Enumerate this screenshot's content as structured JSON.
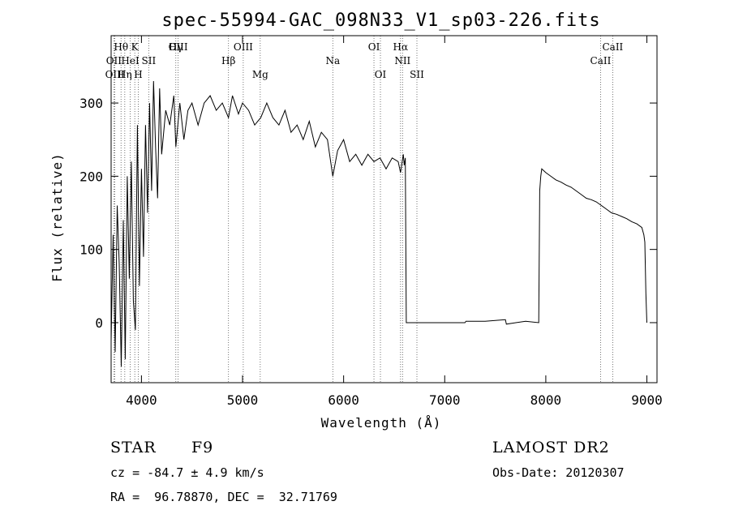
{
  "chart_data": {
    "type": "line",
    "title": "spec-55994-GAC_098N33_V1_sp03-226.fits",
    "xlabel": "Wavelength (Å)",
    "ylabel": "Flux (relative)",
    "xlim": [
      3700,
      9100
    ],
    "ylim": [
      -82,
      392
    ],
    "x_ticks": [
      4000,
      5000,
      6000,
      7000,
      8000,
      9000
    ],
    "y_ticks": [
      0,
      100,
      200,
      300
    ],
    "grid": false,
    "series": [
      {
        "x": [
          3700,
          3720,
          3740,
          3760,
          3780,
          3800,
          3820,
          3840,
          3860,
          3880,
          3900,
          3920,
          3940,
          3960,
          3980,
          4000,
          4020,
          4040,
          4060,
          4080,
          4100,
          4120,
          4140,
          4160,
          4180,
          4200,
          4240,
          4280,
          4320,
          4340,
          4380,
          4420,
          4460,
          4500,
          4560,
          4620,
          4680,
          4740,
          4800,
          4861,
          4900,
          4960,
          5000,
          5060,
          5120,
          5180,
          5240,
          5300,
          5360,
          5420,
          5480,
          5540,
          5600,
          5660,
          5720,
          5780,
          5840,
          5893,
          5940,
          6000,
          6060,
          6120,
          6180,
          6240,
          6300,
          6360,
          6420,
          6480,
          6540,
          6563,
          6590,
          6600,
          6610,
          6620,
          6800,
          7000,
          7200,
          7210,
          7400,
          7600,
          7610,
          7800,
          7930,
          7940,
          7950,
          7960,
          8000,
          8050,
          8100,
          8150,
          8200,
          8250,
          8300,
          8350,
          8400,
          8450,
          8500,
          8550,
          8600,
          8650,
          8700,
          8750,
          8800,
          8850,
          8900,
          8950,
          8970,
          8980,
          8990,
          9000
        ],
        "y": [
          -25,
          120,
          -40,
          160,
          80,
          -60,
          140,
          -50,
          200,
          60,
          220,
          30,
          -10,
          270,
          50,
          210,
          90,
          270,
          150,
          300,
          180,
          330,
          240,
          170,
          320,
          230,
          290,
          270,
          310,
          240,
          300,
          250,
          290,
          300,
          270,
          300,
          310,
          290,
          300,
          280,
          310,
          285,
          300,
          290,
          270,
          280,
          300,
          280,
          270,
          290,
          260,
          270,
          250,
          275,
          240,
          260,
          250,
          200,
          235,
          250,
          220,
          230,
          215,
          230,
          220,
          225,
          210,
          225,
          220,
          205,
          230,
          215,
          225,
          0,
          0,
          0,
          0,
          2,
          2,
          4,
          -2,
          2,
          0,
          180,
          200,
          210,
          205,
          200,
          195,
          192,
          188,
          185,
          180,
          175,
          170,
          168,
          165,
          160,
          155,
          150,
          148,
          145,
          142,
          138,
          135,
          130,
          120,
          110,
          40,
          0
        ]
      }
    ],
    "line_annotations": [
      {
        "label": "Hθ",
        "x": 3798
      },
      {
        "label": "OII",
        "x": 3727
      },
      {
        "label": "OIII",
        "x": 3737
      },
      {
        "label": "K",
        "x": 3934
      },
      {
        "label": "H",
        "x": 3969
      },
      {
        "label": "Hη",
        "x": 3835
      },
      {
        "label": "HeI",
        "x": 3889
      },
      {
        "label": "SII",
        "x": 4072
      },
      {
        "label": "Hγ",
        "x": 4340
      },
      {
        "label": "OIII",
        "x": 4363
      },
      {
        "label": "Hβ",
        "x": 4861
      },
      {
        "label": "OIII",
        "x": 5007
      },
      {
        "label": "Mg",
        "x": 5175
      },
      {
        "label": "Na",
        "x": 5893
      },
      {
        "label": "OI",
        "x": 6300
      },
      {
        "label": "OI",
        "x": 6364
      },
      {
        "label": "Hα",
        "x": 6563
      },
      {
        "label": "NII",
        "x": 6583
      },
      {
        "label": "SII",
        "x": 6725
      },
      {
        "label": "CaII",
        "x": 8542
      },
      {
        "label": "CaII",
        "x": 8662
      }
    ]
  },
  "meta": {
    "object_class": "STAR",
    "subclass": "F9",
    "survey": "LAMOST DR2",
    "redshift_text": "cz = -84.7 ± 4.9 km/s",
    "obs_date": "Obs-Date: 20120307",
    "coords": "RA =  96.78870, DEC =  32.71769"
  }
}
